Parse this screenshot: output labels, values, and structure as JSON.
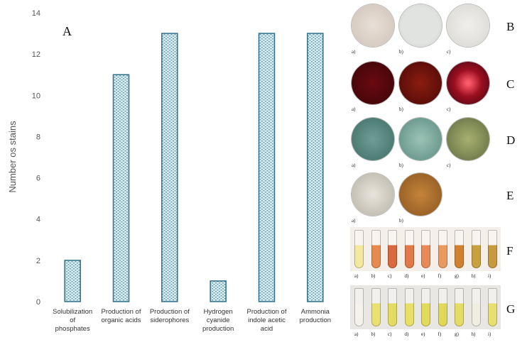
{
  "chart_data": {
    "type": "bar",
    "panel_label": "A",
    "ylabel": "Number os stains",
    "ylim": [
      0,
      14
    ],
    "yticks": [
      0,
      2,
      4,
      6,
      8,
      10,
      12,
      14
    ],
    "categories": [
      [
        "Solubilization",
        "of",
        "phosphates"
      ],
      [
        "Production of",
        "organic acids"
      ],
      [
        "Production of",
        "siderophores"
      ],
      [
        "Hydrogen",
        "cyanide",
        "production"
      ],
      [
        "Production of",
        "indole acetic",
        "acid"
      ],
      [
        "Ammonia",
        "production"
      ]
    ],
    "values": [
      2,
      11,
      13,
      1,
      13,
      13
    ],
    "grid": false,
    "bar_color": "#2e6f86",
    "bar_fill": "#d7ecf1"
  },
  "photos": {
    "rows": [
      {
        "letter": "B",
        "labels": [
          "a)",
          "b)",
          "c)"
        ]
      },
      {
        "letter": "C",
        "labels": [
          "a)",
          "b)",
          "c)"
        ]
      },
      {
        "letter": "D",
        "labels": [
          "a)",
          "b)",
          "c)"
        ]
      },
      {
        "letter": "E",
        "labels": [
          "a)",
          "b)"
        ]
      },
      {
        "letter": "F",
        "labels": [
          "a)",
          "b)",
          "c)",
          "d)",
          "e)",
          "f)",
          "g)",
          "h)",
          "i)"
        ]
      },
      {
        "letter": "G",
        "labels": [
          "a)",
          "b)",
          "c)",
          "d)",
          "e)",
          "f)",
          "g)",
          "h)",
          "i)"
        ]
      }
    ]
  }
}
